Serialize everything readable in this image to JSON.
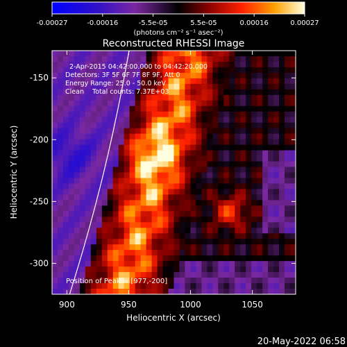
{
  "figure": {
    "title": "Reconstructed RHESSI Image",
    "xlabel": "Heliocentric X (arcsec)",
    "ylabel": "Heliocentric Y (arcsec)",
    "timestamp": "20-May-2022 06:58",
    "info_lines": [
      "2-Apr-2015 04:42:00.000 to 04:42:20.000",
      "Detectors: 3F 5F 6F 7F 8F 9F, Att 0",
      "Energy Range: 25.0 - 50.0 keV",
      "Clean    Total counts: 7.37E+03"
    ],
    "peak_label": "Position of Peak = [977,-200]",
    "xaxis": {
      "min": 888,
      "max": 1085,
      "ticks": [
        900,
        950,
        1000,
        1050
      ]
    },
    "yaxis": {
      "min": -325,
      "max": -128,
      "ticks": [
        -150,
        -200,
        -250,
        -300
      ]
    }
  },
  "colorbar": {
    "min": -0.00027,
    "max": 0.00027,
    "tick_labels": [
      "-0.00027",
      "-0.00016",
      "-5.5e-05",
      "5.5e-05",
      "0.00016",
      "0.00027"
    ],
    "unit_label": "(photons cm⁻² s⁻¹ asec⁻²)"
  },
  "colors": {
    "background": "#000000",
    "text": "#ffffff",
    "limb": "#ffffff"
  }
}
